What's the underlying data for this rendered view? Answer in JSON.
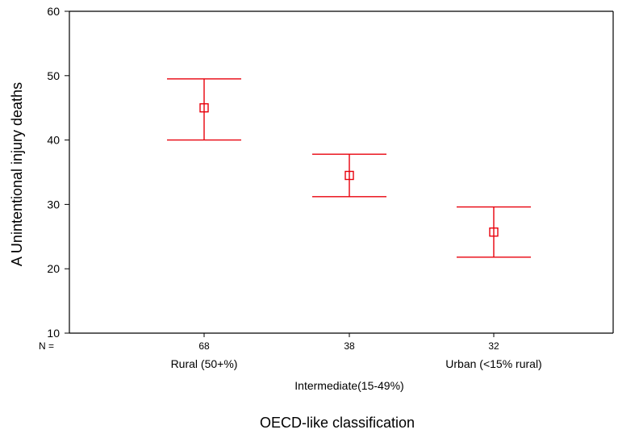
{
  "chart_data": {
    "type": "errorbar",
    "xlabel": "OECD-like classification",
    "ylabel": "A Unintentional injury deaths",
    "ylim": [
      10,
      60
    ],
    "yticks": [
      10,
      20,
      30,
      40,
      50,
      60
    ],
    "n_prefix": "N =",
    "categories": [
      "Rural (50+%)",
      "Intermediate(15-49%)",
      "Urban (<15% rural)"
    ],
    "n": [
      "68",
      "38",
      "32"
    ],
    "means": [
      45.0,
      34.5,
      25.7
    ],
    "lower": [
      40.0,
      31.2,
      21.8
    ],
    "upper": [
      49.5,
      37.8,
      29.6
    ],
    "color": "#e8000b",
    "grid": false
  }
}
